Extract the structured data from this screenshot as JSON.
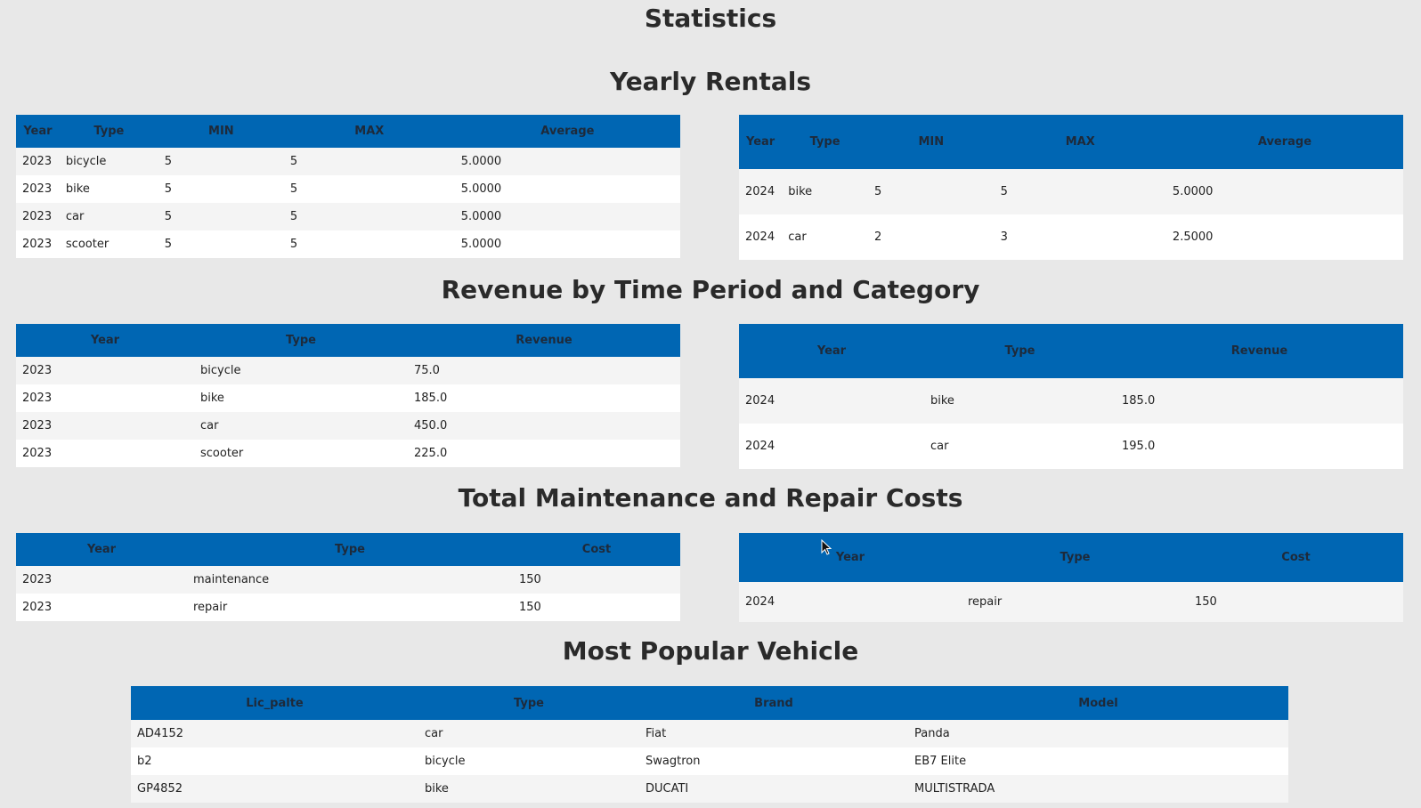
{
  "page_title": "Statistics",
  "yearly_rentals": {
    "title": "Yearly Rentals",
    "headers": [
      "Year",
      "Type",
      "MIN",
      "MAX",
      "Average"
    ],
    "left_rows": [
      [
        "2023",
        "bicycle",
        "5",
        "5",
        "5.0000"
      ],
      [
        "2023",
        "bike",
        "5",
        "5",
        "5.0000"
      ],
      [
        "2023",
        "car",
        "5",
        "5",
        "5.0000"
      ],
      [
        "2023",
        "scooter",
        "5",
        "5",
        "5.0000"
      ]
    ],
    "right_rows": [
      [
        "2024",
        "bike",
        "5",
        "5",
        "5.0000"
      ],
      [
        "2024",
        "car",
        "2",
        "3",
        "2.5000"
      ]
    ]
  },
  "revenue": {
    "title": "Revenue by Time Period and Category",
    "headers": [
      "Year",
      "Type",
      "Revenue"
    ],
    "left_rows": [
      [
        "2023",
        "bicycle",
        "75.0"
      ],
      [
        "2023",
        "bike",
        "185.0"
      ],
      [
        "2023",
        "car",
        "450.0"
      ],
      [
        "2023",
        "scooter",
        "225.0"
      ]
    ],
    "right_rows": [
      [
        "2024",
        "bike",
        "185.0"
      ],
      [
        "2024",
        "car",
        "195.0"
      ]
    ]
  },
  "maintenance": {
    "title": "Total Maintenance and Repair Costs",
    "headers": [
      "Year",
      "Type",
      "Cost"
    ],
    "left_rows": [
      [
        "2023",
        "maintenance",
        "150"
      ],
      [
        "2023",
        "repair",
        "150"
      ]
    ],
    "right_rows": [
      [
        "2024",
        "repair",
        "150"
      ]
    ]
  },
  "popular": {
    "title": "Most Popular Vehicle",
    "headers": [
      "Lic_palte",
      "Type",
      "Brand",
      "Model"
    ],
    "rows": [
      [
        "AD4152",
        "car",
        "Fiat",
        "Panda"
      ],
      [
        "b2",
        "bicycle",
        "Swagtron",
        "EB7 Elite"
      ],
      [
        "GP4852",
        "bike",
        "DUCATI",
        "MULTISTRADA"
      ]
    ]
  }
}
